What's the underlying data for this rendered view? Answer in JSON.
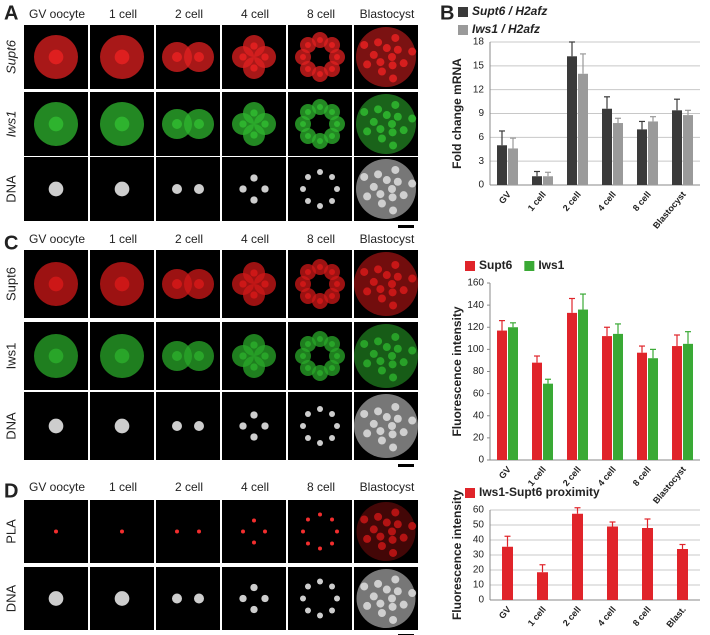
{
  "panels": [
    "A",
    "B",
    "C",
    "D"
  ],
  "image_grids": [
    {
      "columns": [
        "GV oocyte",
        "1 cell",
        "2 cell",
        "4 cell",
        "8 cell",
        "Blastocyst"
      ],
      "rows": [
        "Supt6",
        "Iws1",
        "DNA"
      ]
    },
    {
      "columns": [
        "GV oocyte",
        "1 cell",
        "2 cell",
        "4 cell",
        "8 cell",
        "Blastocyst"
      ],
      "rows": [
        "Supt6",
        "Iws1",
        "DNA"
      ]
    },
    {
      "columns": [
        "GV oocyte",
        "1 cell",
        "2 cell",
        "4 cell",
        "8 cell",
        "Blastocyst"
      ],
      "rows": [
        "PLA",
        "DNA"
      ]
    }
  ],
  "chart_data": [
    {
      "type": "bar",
      "y_label": "Fold change mRNA",
      "categories": [
        "GV",
        "1 cell",
        "2 cell",
        "4 cell",
        "8 cell",
        "Blastocyst"
      ],
      "series": [
        {
          "name": "Supt6 / H2afz",
          "color": "#3a3a3a",
          "values": [
            5,
            1.1,
            16.2,
            9.6,
            7,
            9.4
          ],
          "errors": [
            1.8,
            0.6,
            1.8,
            1.5,
            1,
            1.4
          ]
        },
        {
          "name": "Iws1 / H2afz",
          "color": "#9a9a9a",
          "values": [
            4.6,
            1.1,
            14,
            7.8,
            8,
            8.8
          ],
          "errors": [
            1.3,
            0.5,
            2.5,
            0.6,
            0.6,
            0.6
          ]
        }
      ],
      "ylim": [
        0,
        18
      ],
      "yticks": [
        0,
        3,
        6,
        9,
        12,
        15,
        18
      ],
      "grid": true
    },
    {
      "type": "bar",
      "y_label": "Fluorescence intensity",
      "categories": [
        "GV",
        "1 cell",
        "2 cell",
        "4 cell",
        "8 cell",
        "Blastocyst"
      ],
      "series": [
        {
          "name": "Supt6",
          "color": "#e0242a",
          "values": [
            117,
            88,
            133,
            112,
            97,
            103
          ],
          "errors": [
            9,
            6,
            13,
            8,
            6,
            10
          ]
        },
        {
          "name": "Iws1",
          "color": "#3aa935",
          "values": [
            120,
            69,
            136,
            114,
            92,
            105
          ],
          "errors": [
            4,
            4,
            14,
            9,
            8,
            11
          ]
        }
      ],
      "ylim": [
        0,
        160
      ],
      "yticks": [
        0,
        20,
        40,
        60,
        80,
        100,
        120,
        140,
        160
      ],
      "grid": false
    },
    {
      "type": "bar",
      "y_label": "Fluorescence intensity",
      "categories": [
        "GV",
        "1 cell",
        "2 cell",
        "4 cell",
        "8 cell",
        "Blast."
      ],
      "series": [
        {
          "name": "Iws1-Supt6 proximity",
          "color": "#e0242a",
          "values": [
            35.5,
            18.5,
            57.5,
            49,
            48,
            34
          ],
          "errors": [
            7,
            5,
            4,
            3,
            6,
            3
          ]
        }
      ],
      "ylim": [
        0,
        60
      ],
      "yticks": [
        0,
        10,
        20,
        30,
        40,
        50,
        60
      ],
      "grid": true
    }
  ]
}
